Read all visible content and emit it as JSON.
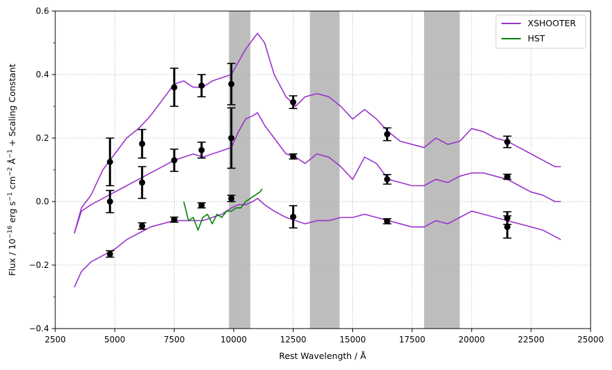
{
  "chart_data": {
    "type": "line",
    "title": "",
    "xlabel": "Rest Wavelength / Å",
    "ylabel_parts": {
      "a": "Flux / 10",
      "exp1": "−16",
      "b": " erg s",
      "exp2": "−1",
      "c": " cm",
      "exp3": "−2",
      "d": " Å",
      "exp4": "−1",
      "e": " + Scaling Constant"
    },
    "xlim": [
      2500,
      25000
    ],
    "ylim": [
      -0.4,
      0.6
    ],
    "xticks": [
      2500,
      5000,
      7500,
      10000,
      12500,
      15000,
      17500,
      20000,
      22500,
      25000
    ],
    "xtick_labels": [
      "2500",
      "5000",
      "7500",
      "10000",
      "12500",
      "15000",
      "17500",
      "20000",
      "22500",
      "25000"
    ],
    "yticks": [
      -0.4,
      -0.2,
      0.0,
      0.2,
      0.4,
      0.6
    ],
    "ytick_labels": [
      "−0.4",
      "−0.2",
      "0.0",
      "0.2",
      "0.4",
      "0.6"
    ],
    "grid": true,
    "legend_position": "top-right",
    "colors": {
      "xshooter": "#9932CC",
      "hst": "#008000",
      "points": "#000000",
      "band": "#bdbdbd",
      "grid": "#b0b0b0"
    },
    "shaded_bands": [
      [
        9800,
        10700
      ],
      [
        13200,
        14450
      ],
      [
        18000,
        19500
      ]
    ],
    "series": [
      {
        "name": "XSHOOTER",
        "x": [
          3300,
          3600,
          4000,
          4500,
          5000,
          5500,
          6000,
          6500,
          7000,
          7500,
          7900,
          8300,
          8700,
          9100,
          9500,
          9900,
          10200,
          10500,
          10800,
          11000,
          11300,
          11700,
          12200,
          12600,
          13000,
          13500,
          14000,
          14500,
          15000,
          15500,
          16000,
          16500,
          17000,
          17500,
          18000,
          18500,
          19000,
          19500,
          20000,
          20500,
          21000,
          21500,
          22000,
          22500,
          23000,
          23500,
          23750
        ],
        "y": [
          -0.1,
          -0.02,
          0.02,
          0.1,
          0.15,
          0.2,
          0.23,
          0.27,
          0.32,
          0.37,
          0.38,
          0.36,
          0.36,
          0.38,
          0.39,
          0.4,
          0.44,
          0.48,
          0.51,
          0.53,
          0.5,
          0.4,
          0.33,
          0.3,
          0.33,
          0.34,
          0.33,
          0.3,
          0.26,
          0.29,
          0.26,
          0.22,
          0.19,
          0.18,
          0.17,
          0.2,
          0.18,
          0.19,
          0.23,
          0.22,
          0.2,
          0.19,
          0.17,
          0.15,
          0.13,
          0.11,
          0.11
        ]
      },
      {
        "name": "",
        "x": [
          3300,
          3600,
          4000,
          4500,
          5000,
          5500,
          6000,
          6500,
          7000,
          7500,
          7900,
          8300,
          8700,
          9100,
          9500,
          9900,
          10200,
          10500,
          10800,
          11000,
          11300,
          11700,
          12200,
          12600,
          13000,
          13500,
          14000,
          14500,
          15000,
          15500,
          16000,
          16500,
          17000,
          17500,
          18000,
          18500,
          19000,
          19500,
          20000,
          20500,
          21000,
          21500,
          22000,
          22500,
          23000,
          23500,
          23750
        ],
        "y": [
          -0.1,
          -0.03,
          -0.01,
          0.01,
          0.03,
          0.05,
          0.07,
          0.09,
          0.11,
          0.13,
          0.14,
          0.15,
          0.14,
          0.15,
          0.16,
          0.17,
          0.22,
          0.26,
          0.27,
          0.28,
          0.24,
          0.2,
          0.15,
          0.14,
          0.12,
          0.15,
          0.14,
          0.11,
          0.07,
          0.14,
          0.12,
          0.07,
          0.06,
          0.05,
          0.05,
          0.07,
          0.06,
          0.08,
          0.09,
          0.09,
          0.08,
          0.07,
          0.05,
          0.03,
          0.02,
          0.0,
          0.0
        ]
      },
      {
        "name": "",
        "x": [
          3300,
          3600,
          4000,
          4500,
          5000,
          5500,
          6000,
          6500,
          7000,
          7500,
          7900,
          8300,
          8700,
          9100,
          9500,
          9900,
          10200,
          10500,
          10800,
          11000,
          11300,
          11700,
          12200,
          12600,
          13000,
          13500,
          14000,
          14500,
          15000,
          15500,
          16000,
          16500,
          17000,
          17500,
          18000,
          18500,
          19000,
          19500,
          20000,
          20500,
          21000,
          21500,
          22000,
          22500,
          23000,
          23500,
          23750
        ],
        "y": [
          -0.27,
          -0.22,
          -0.19,
          -0.17,
          -0.15,
          -0.12,
          -0.1,
          -0.08,
          -0.07,
          -0.06,
          -0.06,
          -0.06,
          -0.06,
          -0.05,
          -0.04,
          -0.02,
          -0.01,
          -0.01,
          0.0,
          0.01,
          -0.01,
          -0.03,
          -0.05,
          -0.06,
          -0.07,
          -0.06,
          -0.06,
          -0.05,
          -0.05,
          -0.04,
          -0.05,
          -0.06,
          -0.07,
          -0.08,
          -0.08,
          -0.06,
          -0.07,
          -0.05,
          -0.03,
          -0.04,
          -0.05,
          -0.06,
          -0.07,
          -0.08,
          -0.09,
          -0.11,
          -0.12
        ]
      },
      {
        "name": "HST",
        "x": [
          7900,
          8100,
          8300,
          8500,
          8700,
          8900,
          9100,
          9300,
          9500,
          9700,
          9900,
          10100,
          10300,
          10500,
          10700,
          10900,
          11100,
          11200
        ],
        "y": [
          0.0,
          -0.06,
          -0.05,
          -0.09,
          -0.05,
          -0.04,
          -0.07,
          -0.04,
          -0.05,
          -0.03,
          -0.03,
          -0.02,
          -0.02,
          0.0,
          0.01,
          0.02,
          0.03,
          0.04
        ]
      }
    ],
    "errorbar_points": [
      {
        "x": 4800,
        "y": 0.125,
        "err": 0.075
      },
      {
        "x": 4800,
        "y": 0.0,
        "err": 0.035
      },
      {
        "x": 4800,
        "y": -0.165,
        "err": 0.01
      },
      {
        "x": 6150,
        "y": 0.182,
        "err": 0.045
      },
      {
        "x": 6150,
        "y": 0.06,
        "err": 0.05
      },
      {
        "x": 6150,
        "y": -0.077,
        "err": 0.01
      },
      {
        "x": 7500,
        "y": 0.36,
        "err": 0.06
      },
      {
        "x": 7500,
        "y": 0.13,
        "err": 0.035
      },
      {
        "x": 7500,
        "y": -0.057,
        "err": 0.008
      },
      {
        "x": 8650,
        "y": 0.365,
        "err": 0.035
      },
      {
        "x": 8650,
        "y": 0.162,
        "err": 0.025
      },
      {
        "x": 8650,
        "y": -0.012,
        "err": 0.008
      },
      {
        "x": 9900,
        "y": 0.37,
        "err": 0.065
      },
      {
        "x": 9900,
        "y": 0.2,
        "err": 0.095
      },
      {
        "x": 9900,
        "y": 0.01,
        "err": 0.01
      },
      {
        "x": 12500,
        "y": 0.313,
        "err": 0.02
      },
      {
        "x": 12500,
        "y": 0.142,
        "err": 0.008
      },
      {
        "x": 12500,
        "y": -0.048,
        "err": 0.035
      },
      {
        "x": 16450,
        "y": 0.212,
        "err": 0.02
      },
      {
        "x": 16450,
        "y": 0.07,
        "err": 0.015
      },
      {
        "x": 16450,
        "y": -0.062,
        "err": 0.008
      },
      {
        "x": 21500,
        "y": 0.188,
        "err": 0.018
      },
      {
        "x": 21500,
        "y": 0.078,
        "err": 0.008
      },
      {
        "x": 21500,
        "y": -0.052,
        "err": 0.02
      },
      {
        "x": 21500,
        "y": -0.08,
        "err": 0.035
      }
    ],
    "legend": [
      {
        "label": "XSHOOTER",
        "color": "#9932CC"
      },
      {
        "label": "HST",
        "color": "#008000"
      }
    ]
  }
}
